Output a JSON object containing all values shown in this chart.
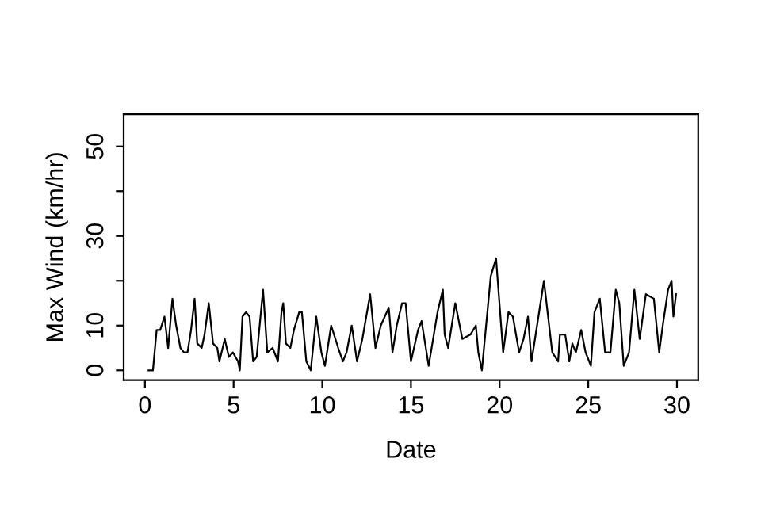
{
  "chart_data": {
    "type": "line",
    "xlabel": "Date",
    "ylabel": "Max Wind (km/hr)",
    "x": [
      0.2,
      0.45,
      0.66,
      0.86,
      1.1,
      1.31,
      1.55,
      1.76,
      2.0,
      2.2,
      2.4,
      2.6,
      2.8,
      2.95,
      3.2,
      3.36,
      3.6,
      3.84,
      4.08,
      4.2,
      4.5,
      4.73,
      4.96,
      5.25,
      5.35,
      5.5,
      5.7,
      5.9,
      6.1,
      6.3,
      6.66,
      6.9,
      7.2,
      7.5,
      7.7,
      7.8,
      7.95,
      8.2,
      8.4,
      8.7,
      8.85,
      9.1,
      9.35,
      9.66,
      9.95,
      10.15,
      10.5,
      10.9,
      11.16,
      11.37,
      11.66,
      11.96,
      12.26,
      12.7,
      13.0,
      13.3,
      13.75,
      13.96,
      14.2,
      14.5,
      14.7,
      15.0,
      15.4,
      15.6,
      16.0,
      16.5,
      16.8,
      16.9,
      17.1,
      17.5,
      17.9,
      18.36,
      18.66,
      18.8,
      19.0,
      19.5,
      19.8,
      20.2,
      20.5,
      20.75,
      21.1,
      21.35,
      21.6,
      21.8,
      22.5,
      22.97,
      23.3,
      23.4,
      23.7,
      23.93,
      24.1,
      24.3,
      24.6,
      24.85,
      25.15,
      25.35,
      25.65,
      25.95,
      26.25,
      26.55,
      26.75,
      27.0,
      27.3,
      27.6,
      27.9,
      28.25,
      28.7,
      29.0,
      29.2,
      29.5,
      29.7,
      29.8,
      29.95
    ],
    "series": [
      {
        "color": "#000000",
        "values": [
          0,
          0,
          9,
          9,
          12,
          5,
          16,
          10,
          5,
          4,
          4,
          9,
          16,
          6,
          5,
          8,
          15,
          6,
          5,
          2,
          7,
          3,
          4,
          2,
          0,
          12,
          13,
          12,
          2,
          3,
          18,
          4,
          5,
          2,
          13,
          15,
          6,
          5,
          9,
          13,
          13,
          2,
          0,
          12,
          4,
          1,
          10,
          5,
          2,
          4,
          10,
          2,
          7,
          17,
          5,
          10,
          14,
          4,
          10,
          15,
          15,
          2,
          9,
          11,
          1,
          13,
          18,
          8,
          5,
          15,
          7,
          8,
          10,
          4,
          0,
          21,
          25,
          4,
          13,
          12,
          4,
          7,
          12,
          2,
          20,
          4,
          2,
          8,
          8,
          2,
          6,
          4,
          9,
          4,
          1,
          13,
          16,
          4,
          4,
          18,
          15,
          1,
          4,
          18,
          7,
          17,
          16,
          4,
          10,
          18,
          20,
          12,
          17
        ]
      }
    ],
    "xlim": [
      -1.2,
      31.2
    ],
    "ylim": [
      -2.2,
      57.2
    ],
    "xticks": [
      0,
      5,
      10,
      15,
      20,
      25,
      30
    ],
    "yticks": [
      0,
      10,
      {
        "value": 20,
        "label": null
      },
      30,
      {
        "value": 40,
        "label": null
      },
      50
    ],
    "grid": false,
    "legend": false,
    "marker": "none",
    "line_style": "solid"
  }
}
